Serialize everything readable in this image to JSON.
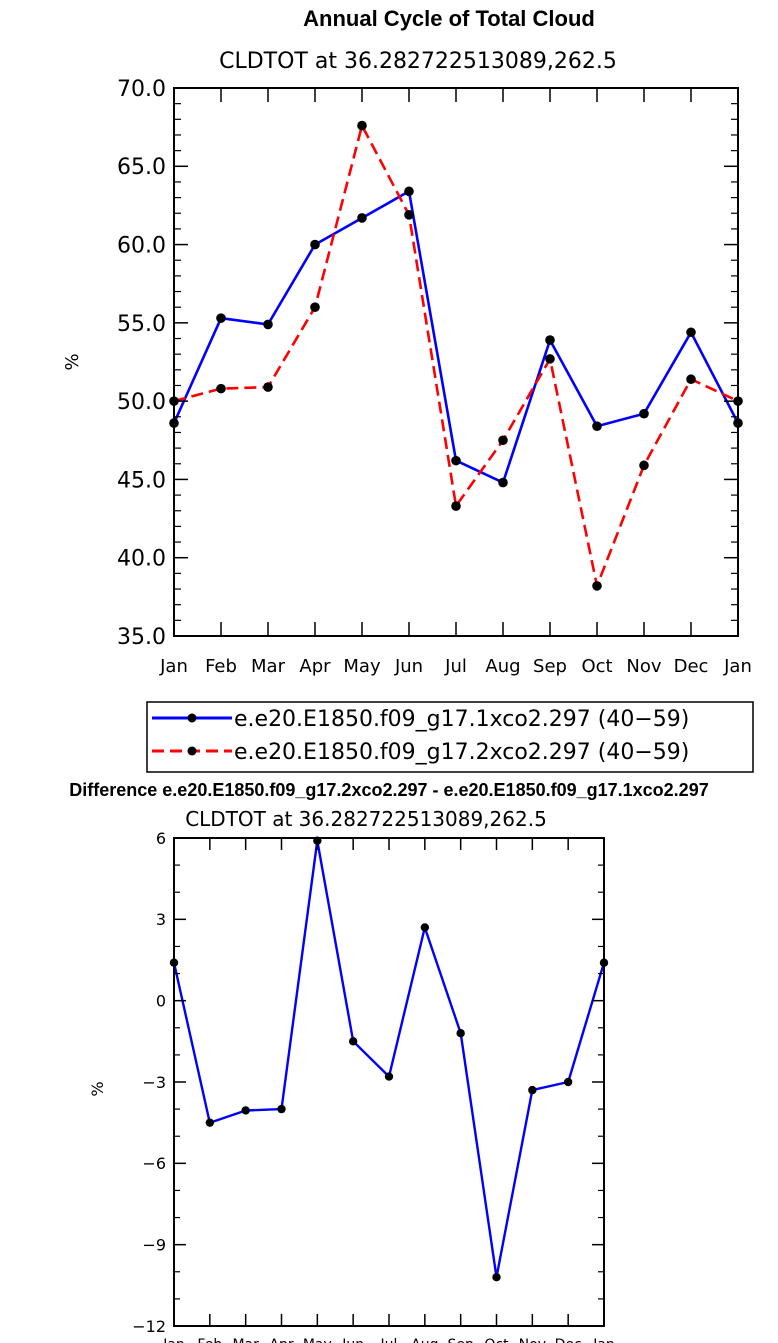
{
  "chart_data": [
    {
      "type": "line",
      "title": "Annual Cycle of Total Cloud",
      "subtitle": "CLDTOT at 36.282722513089,262.5",
      "xlabel": "",
      "ylabel": "%",
      "categories": [
        "Jan",
        "Feb",
        "Mar",
        "Apr",
        "May",
        "Jun",
        "Jul",
        "Aug",
        "Sep",
        "Oct",
        "Nov",
        "Dec",
        "Jan"
      ],
      "ylim": [
        35.0,
        70.0
      ],
      "yticks": [
        "35.0",
        "40.0",
        "45.0",
        "50.0",
        "55.0",
        "60.0",
        "65.0",
        "70.0"
      ],
      "series": [
        {
          "name": "e.e20.E1850.f09_g17.1xco2.297 (40−59)",
          "color": "#0000ff",
          "dash": "solid",
          "values": [
            48.6,
            55.3,
            54.9,
            60.0,
            61.7,
            63.4,
            46.2,
            44.8,
            53.9,
            48.4,
            49.2,
            54.4,
            48.6
          ]
        },
        {
          "name": "e.e20.E1850.f09_g17.2xco2.297 (40−59)",
          "color": "#ff0000",
          "dash": "dashed",
          "values": [
            50.0,
            50.8,
            50.9,
            56.0,
            67.6,
            61.9,
            43.3,
            47.5,
            52.7,
            38.2,
            45.9,
            51.4,
            50.0
          ]
        }
      ],
      "legend_position": "bottom"
    },
    {
      "type": "line",
      "title": "Difference e.e20.E1850.f09_g17.2xco2.297 - e.e20.E1850.f09_g17.1xco2.297",
      "subtitle": "CLDTOT at 36.282722513089,262.5",
      "xlabel": "",
      "ylabel": "%",
      "categories": [
        "Jan",
        "Feb",
        "Mar",
        "Apr",
        "May",
        "Jun",
        "Jul",
        "Aug",
        "Sep",
        "Oct",
        "Nov",
        "Dec",
        "Jan"
      ],
      "ylim": [
        -12,
        6
      ],
      "yticks": [
        "−12",
        "−9",
        "−6",
        "−3",
        "0",
        "3",
        "6"
      ],
      "series": [
        {
          "name": "Difference",
          "color": "#0000ff",
          "dash": "solid",
          "values": [
            1.4,
            -4.5,
            -4.05,
            -4.0,
            5.9,
            -1.5,
            -2.8,
            2.7,
            -1.2,
            -10.2,
            -3.3,
            -3.0,
            1.4
          ]
        }
      ]
    }
  ]
}
